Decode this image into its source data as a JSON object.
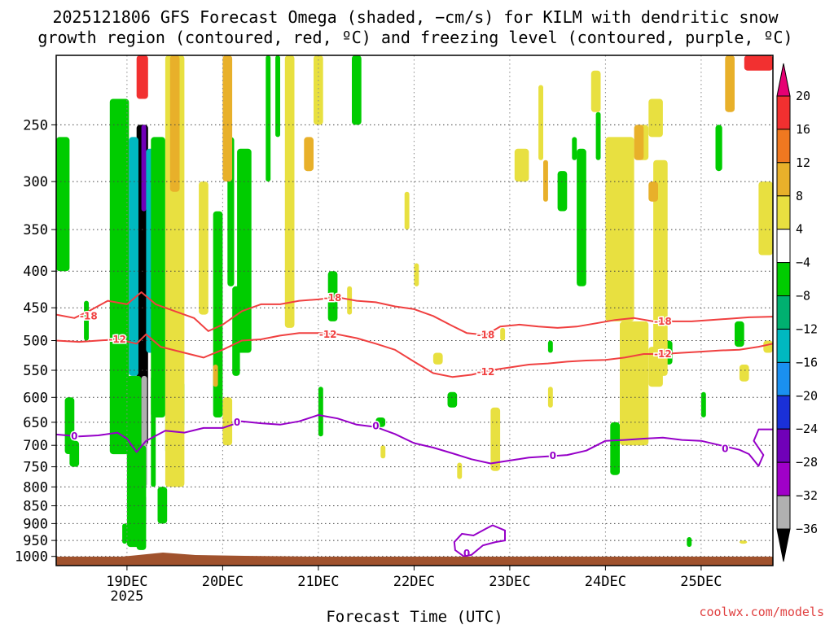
{
  "chart_data": {
    "type": "heatmap",
    "title_lines": [
      "2025121806 GFS Forecast Omega (shaded, −cm/s) for KILM with dendritic snow",
      "growth region (contoured, red, ºC) and freezing level (contoured, purple, ºC)"
    ],
    "xlabel": "Forecast Time (UTC)",
    "x_range_days": [
      18.26,
      25.75
    ],
    "x_ticks": [
      {
        "day": 19,
        "label": "19DEC",
        "sub": "2025"
      },
      {
        "day": 20,
        "label": "20DEC",
        "sub": ""
      },
      {
        "day": 21,
        "label": "21DEC",
        "sub": ""
      },
      {
        "day": 22,
        "label": "22DEC",
        "sub": ""
      },
      {
        "day": 23,
        "label": "23DEC",
        "sub": ""
      },
      {
        "day": 24,
        "label": "24DEC",
        "sub": ""
      },
      {
        "day": 25,
        "label": "25DEC",
        "sub": ""
      }
    ],
    "y_scale": "log",
    "y_range_hpa": [
      1030,
      200
    ],
    "y_ticks": [
      250,
      300,
      350,
      400,
      450,
      500,
      550,
      600,
      650,
      700,
      750,
      800,
      850,
      900,
      950,
      1000
    ],
    "colorbar": {
      "labels": [
        "20",
        "16",
        "12",
        "8",
        "4",
        "−4",
        "−8",
        "−12",
        "−16",
        "−20",
        "−24",
        "−28",
        "−32",
        "−36"
      ],
      "colors": [
        "#e60073",
        "#f23030",
        "#f07820",
        "#e8b02a",
        "#e8e040",
        "#ffffff",
        "#00cc00",
        "#00b070",
        "#00b8c0",
        "#1a90f0",
        "#1a30d8",
        "#7000b8",
        "#a000c8",
        "#b0b0b0",
        "#000000"
      ]
    },
    "contours": [
      {
        "level": -18,
        "color": "#f04040",
        "points": [
          [
            18.26,
            460
          ],
          [
            18.45,
            465
          ],
          [
            18.6,
            455
          ],
          [
            18.8,
            440
          ],
          [
            19.0,
            445
          ],
          [
            19.15,
            428
          ],
          [
            19.3,
            445
          ],
          [
            19.5,
            455
          ],
          [
            19.7,
            465
          ],
          [
            19.85,
            485
          ],
          [
            20.0,
            475
          ],
          [
            20.2,
            455
          ],
          [
            20.4,
            445
          ],
          [
            20.6,
            445
          ],
          [
            20.8,
            440
          ],
          [
            21.0,
            438
          ],
          [
            21.2,
            435
          ],
          [
            21.4,
            440
          ],
          [
            21.6,
            442
          ],
          [
            21.8,
            448
          ],
          [
            22.0,
            452
          ],
          [
            22.2,
            462
          ],
          [
            22.4,
            477
          ],
          [
            22.55,
            488
          ],
          [
            22.75,
            491
          ],
          [
            22.9,
            478
          ],
          [
            23.1,
            475
          ],
          [
            23.3,
            478
          ],
          [
            23.5,
            480
          ],
          [
            23.7,
            478
          ],
          [
            23.9,
            473
          ],
          [
            24.1,
            468
          ],
          [
            24.3,
            465
          ],
          [
            24.5,
            470
          ],
          [
            24.7,
            470
          ],
          [
            24.9,
            470
          ],
          [
            25.1,
            468
          ],
          [
            25.3,
            466
          ],
          [
            25.5,
            464
          ],
          [
            25.75,
            463
          ]
        ],
        "labels": [
          {
            "x": 18.6,
            "p": 462,
            "text": "-18"
          },
          {
            "x": 21.15,
            "p": 436,
            "text": "-18"
          },
          {
            "x": 22.75,
            "p": 491,
            "text": "-18"
          },
          {
            "x": 24.6,
            "p": 470,
            "text": "-18"
          }
        ]
      },
      {
        "level": -12,
        "color": "#f04040",
        "points": [
          [
            18.26,
            500
          ],
          [
            18.5,
            502
          ],
          [
            18.7,
            500
          ],
          [
            18.9,
            498
          ],
          [
            19.1,
            505
          ],
          [
            19.2,
            490
          ],
          [
            19.35,
            510
          ],
          [
            19.6,
            520
          ],
          [
            19.8,
            528
          ],
          [
            20.0,
            515
          ],
          [
            20.2,
            500
          ],
          [
            20.4,
            498
          ],
          [
            20.6,
            492
          ],
          [
            20.8,
            488
          ],
          [
            21.0,
            488
          ],
          [
            21.2,
            490
          ],
          [
            21.4,
            496
          ],
          [
            21.6,
            505
          ],
          [
            21.8,
            515
          ],
          [
            22.0,
            535
          ],
          [
            22.2,
            555
          ],
          [
            22.4,
            562
          ],
          [
            22.6,
            558
          ],
          [
            22.8,
            550
          ],
          [
            23.0,
            545
          ],
          [
            23.2,
            540
          ],
          [
            23.4,
            538
          ],
          [
            23.6,
            535
          ],
          [
            23.8,
            533
          ],
          [
            24.0,
            532
          ],
          [
            24.2,
            528
          ],
          [
            24.4,
            522
          ],
          [
            24.6,
            522
          ],
          [
            24.8,
            520
          ],
          [
            25.0,
            518
          ],
          [
            25.2,
            516
          ],
          [
            25.4,
            515
          ],
          [
            25.6,
            510
          ],
          [
            25.75,
            505
          ]
        ],
        "labels": [
          {
            "x": 18.9,
            "p": 498,
            "text": "-12"
          },
          {
            "x": 21.1,
            "p": 490,
            "text": "-12"
          },
          {
            "x": 22.75,
            "p": 553,
            "text": "-12"
          },
          {
            "x": 24.6,
            "p": 522,
            "text": "-12"
          }
        ]
      },
      {
        "level": 0,
        "color": "#9600c8",
        "points": [
          [
            18.26,
            676
          ],
          [
            18.5,
            680
          ],
          [
            18.7,
            678
          ],
          [
            18.9,
            672
          ],
          [
            19.0,
            685
          ],
          [
            19.1,
            715
          ],
          [
            19.2,
            690
          ],
          [
            19.4,
            668
          ],
          [
            19.6,
            672
          ],
          [
            19.8,
            662
          ],
          [
            20.0,
            662
          ],
          [
            20.2,
            648
          ],
          [
            20.4,
            652
          ],
          [
            20.6,
            655
          ],
          [
            20.8,
            648
          ],
          [
            21.0,
            635
          ],
          [
            21.2,
            642
          ],
          [
            21.4,
            655
          ],
          [
            21.6,
            660
          ],
          [
            21.8,
            675
          ],
          [
            22.0,
            695
          ],
          [
            22.2,
            705
          ],
          [
            22.4,
            718
          ],
          [
            22.6,
            732
          ],
          [
            22.8,
            742
          ],
          [
            23.0,
            735
          ],
          [
            23.2,
            728
          ],
          [
            23.4,
            725
          ],
          [
            23.6,
            722
          ],
          [
            23.8,
            712
          ],
          [
            24.0,
            690
          ],
          [
            24.2,
            688
          ],
          [
            24.4,
            685
          ],
          [
            24.6,
            683
          ],
          [
            24.8,
            688
          ],
          [
            25.0,
            690
          ],
          [
            25.2,
            700
          ],
          [
            25.4,
            710
          ],
          [
            25.5,
            720
          ],
          [
            25.6,
            748
          ],
          [
            25.65,
            722
          ],
          [
            25.55,
            690
          ],
          [
            25.6,
            665
          ],
          [
            25.75,
            665
          ]
        ],
        "labels": [
          {
            "x": 18.45,
            "p": 680,
            "text": "0"
          },
          {
            "x": 20.15,
            "p": 650,
            "text": "0"
          },
          {
            "x": 21.6,
            "p": 658,
            "text": "0"
          },
          {
            "x": 23.45,
            "p": 724,
            "text": "0"
          },
          {
            "x": 25.25,
            "p": 708,
            "text": "0"
          },
          {
            "x": 22.55,
            "p": 990,
            "text": "0"
          }
        ]
      }
    ],
    "legend": "none",
    "grid": true
  },
  "credit": "coolwx.com/models"
}
